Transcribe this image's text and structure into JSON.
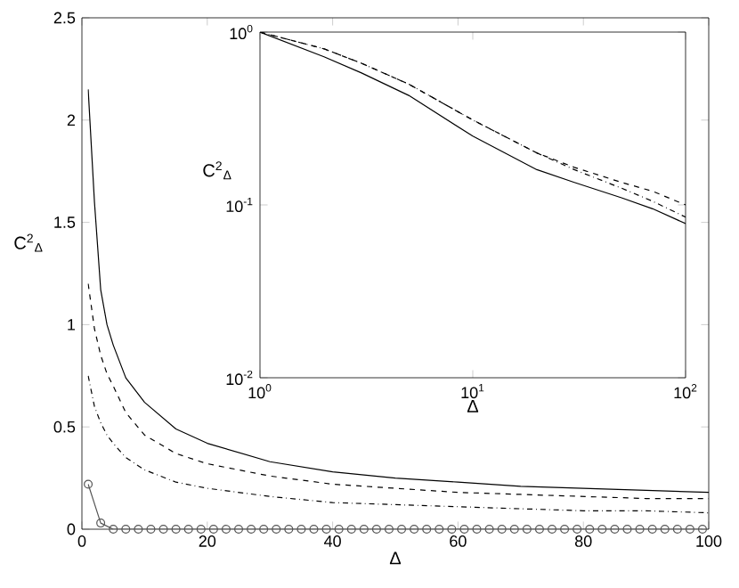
{
  "chart_data": [
    {
      "type": "line",
      "xlabel": "Δ",
      "ylabel": "C$^{2}$$_{Δ}$",
      "xlim": [
        0,
        100
      ],
      "ylim": [
        0,
        2.5
      ],
      "xticks": [
        0,
        20,
        40,
        60,
        80,
        100
      ],
      "yticks": [
        0,
        0.5,
        1,
        1.5,
        2,
        2.5
      ],
      "grid": false,
      "series": [
        {
          "color": "#000000",
          "line_style": "solid",
          "marker": "none",
          "x": [
            1,
            2,
            3,
            4,
            5,
            7,
            10,
            15,
            20,
            30,
            40,
            50,
            60,
            70,
            80,
            90,
            100
          ],
          "values": [
            2.15,
            1.6,
            1.17,
            1.0,
            0.9,
            0.74,
            0.62,
            0.49,
            0.42,
            0.33,
            0.28,
            0.25,
            0.23,
            0.21,
            0.2,
            0.19,
            0.18
          ]
        },
        {
          "color": "#000000",
          "line_style": "dashed",
          "marker": "none",
          "x": [
            1,
            2,
            3,
            4,
            5,
            7,
            10,
            15,
            20,
            30,
            40,
            50,
            60,
            70,
            80,
            90,
            100
          ],
          "values": [
            1.2,
            0.98,
            0.85,
            0.76,
            0.7,
            0.57,
            0.46,
            0.37,
            0.32,
            0.26,
            0.22,
            0.2,
            0.18,
            0.17,
            0.16,
            0.15,
            0.15
          ]
        },
        {
          "color": "#000000",
          "line_style": "dashdot",
          "marker": "none",
          "x": [
            1,
            2,
            3,
            4,
            5,
            7,
            10,
            15,
            20,
            30,
            40,
            50,
            60,
            70,
            80,
            90,
            100
          ],
          "values": [
            0.75,
            0.6,
            0.52,
            0.46,
            0.42,
            0.35,
            0.29,
            0.23,
            0.2,
            0.16,
            0.13,
            0.12,
            0.11,
            0.1,
            0.09,
            0.09,
            0.08
          ]
        },
        {
          "color": "#555555",
          "line_style": "solid",
          "marker": "circle",
          "x": [
            1,
            3,
            5,
            7,
            9,
            11,
            13,
            15,
            17,
            19,
            21,
            23,
            25,
            27,
            29,
            31,
            33,
            35,
            37,
            39,
            41,
            43,
            45,
            47,
            49,
            51,
            53,
            55,
            57,
            59,
            61,
            63,
            65,
            67,
            69,
            71,
            73,
            75,
            77,
            79,
            81,
            83,
            85,
            87,
            89,
            91,
            93,
            95,
            97,
            99
          ],
          "values": [
            0.22,
            0.03,
            0,
            0,
            0,
            0,
            0,
            0,
            0,
            0,
            0,
            0,
            0,
            0,
            0,
            0,
            0,
            0,
            0,
            0,
            0,
            0,
            0,
            0,
            0,
            0,
            0,
            0,
            0,
            0,
            0,
            0,
            0,
            0,
            0,
            0,
            0,
            0,
            0,
            0,
            0,
            0,
            0,
            0,
            0,
            0,
            0,
            0,
            0,
            0
          ]
        }
      ]
    },
    {
      "type": "line",
      "xlabel": "Δ",
      "ylabel": "C$^{2}$$_{Δ}$",
      "log": "xy",
      "xlim": [
        1,
        100
      ],
      "ylim": [
        0.01,
        1
      ],
      "xticks": [
        {
          "value": 1,
          "label": "10$^{0}$"
        },
        {
          "value": 10,
          "label": "10$^{1}$"
        },
        {
          "value": 100,
          "label": "10$^{2}$"
        }
      ],
      "yticks": [
        {
          "value": 0.01,
          "label": "10$^{-2}$"
        },
        {
          "value": 0.1,
          "label": "10$^{-1}$"
        },
        {
          "value": 1,
          "label": "10$^{0}$"
        }
      ],
      "grid": false,
      "series": [
        {
          "color": "#000000",
          "line_style": "solid",
          "marker": "none",
          "x": [
            1,
            2,
            3,
            5,
            10,
            20,
            30,
            50,
            70,
            100
          ],
          "values": [
            1,
            0.72,
            0.58,
            0.43,
            0.25,
            0.16,
            0.135,
            0.11,
            0.095,
            0.078
          ]
        },
        {
          "color": "#000000",
          "line_style": "dashed",
          "marker": "none",
          "x": [
            1,
            2,
            3,
            5,
            10,
            20,
            30,
            50,
            70,
            100
          ],
          "values": [
            1,
            0.8,
            0.66,
            0.5,
            0.31,
            0.2,
            0.165,
            0.135,
            0.12,
            0.1
          ]
        },
        {
          "color": "#000000",
          "line_style": "dashdot",
          "marker": "none",
          "x": [
            1,
            2,
            3,
            5,
            10,
            20,
            30,
            50,
            70,
            100
          ],
          "values": [
            1,
            0.8,
            0.66,
            0.5,
            0.31,
            0.2,
            0.16,
            0.125,
            0.105,
            0.085
          ]
        }
      ]
    }
  ]
}
